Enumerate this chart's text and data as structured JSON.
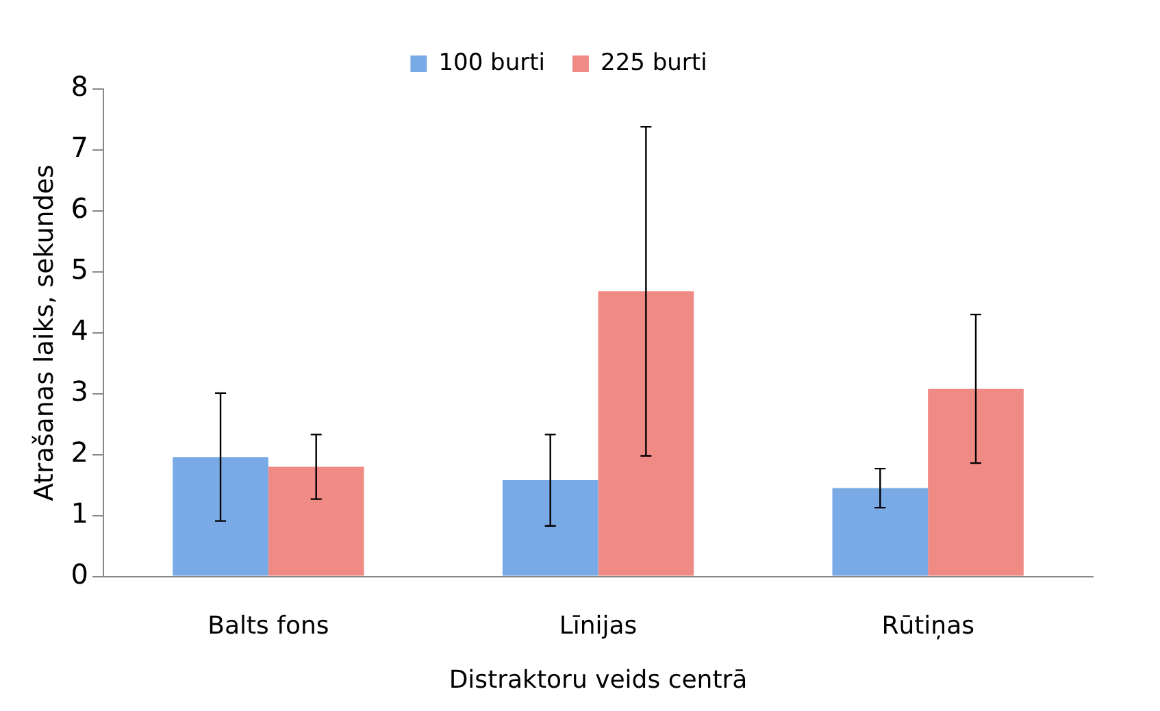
{
  "chart_data": {
    "type": "bar",
    "xlabel": "Distraktoru veids centrā",
    "ylabel": "Atrašanas laiks, sekundes",
    "categories": [
      "Balts fons",
      "Līnijas",
      "Rūtiņas"
    ],
    "series": [
      {
        "name": "100 burti",
        "color": "#7aaae6",
        "values": [
          1.96,
          1.58,
          1.45
        ],
        "errors": [
          1.05,
          0.75,
          0.32
        ]
      },
      {
        "name": "225 burti",
        "color": "#f08a85",
        "values": [
          1.8,
          4.68,
          3.08
        ],
        "errors": [
          0.53,
          2.7,
          1.22
        ]
      }
    ],
    "ylim": [
      0,
      8
    ],
    "yticks": [
      0,
      1,
      2,
      3,
      4,
      5,
      6,
      7,
      8
    ],
    "grid": false,
    "legend": "top"
  }
}
